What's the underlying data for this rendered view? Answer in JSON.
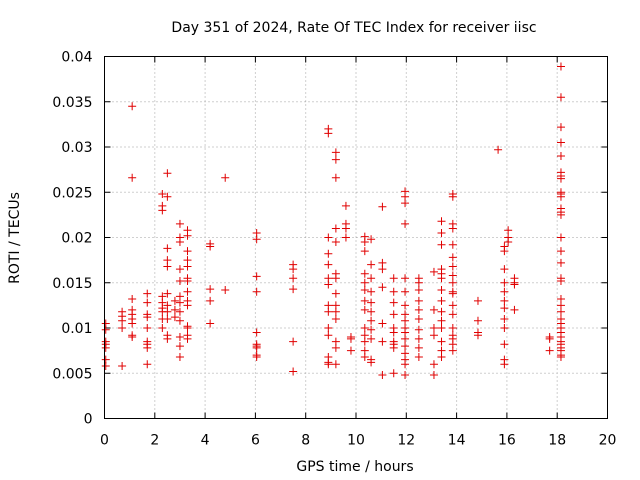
{
  "chart_data": {
    "type": "scatter",
    "title": "Day 351 of 2024, Rate Of TEC Index for receiver iisc",
    "xlabel": "GPS time / hours",
    "ylabel": "ROTI / TECUs",
    "xlim": [
      0,
      20
    ],
    "ylim": [
      0,
      0.04
    ],
    "xticks": [
      0,
      2,
      4,
      6,
      8,
      10,
      12,
      14,
      16,
      18,
      20
    ],
    "xtick_labels": [
      "0",
      "2",
      "4",
      "6",
      "8",
      "10",
      "12",
      "14",
      "16",
      "18",
      "20"
    ],
    "yticks": [
      0,
      0.005,
      0.01,
      0.015,
      0.02,
      0.025,
      0.03,
      0.035,
      0.04
    ],
    "ytick_labels": [
      "0",
      "0.005",
      "0.01",
      "0.015",
      "0.02",
      "0.025",
      "0.03",
      "0.035",
      "0.04"
    ],
    "grid": true,
    "marker": "plus",
    "color": "#e00000",
    "series": [
      {
        "name": "ROTI",
        "points": [
          [
            0.05,
            0.0105
          ],
          [
            0.05,
            0.0098
          ],
          [
            0.05,
            0.0085
          ],
          [
            0.05,
            0.0082
          ],
          [
            0.05,
            0.0078
          ],
          [
            0.05,
            0.0065
          ],
          [
            0.05,
            0.0058
          ],
          [
            0.7,
            0.0118
          ],
          [
            0.7,
            0.0113
          ],
          [
            0.7,
            0.0108
          ],
          [
            0.7,
            0.01
          ],
          [
            0.7,
            0.0058
          ],
          [
            1.1,
            0.0345
          ],
          [
            1.1,
            0.0266
          ],
          [
            1.1,
            0.0132
          ],
          [
            1.1,
            0.012
          ],
          [
            1.1,
            0.0115
          ],
          [
            1.1,
            0.011
          ],
          [
            1.1,
            0.0105
          ],
          [
            1.1,
            0.0092
          ],
          [
            1.1,
            0.009
          ],
          [
            1.7,
            0.0138
          ],
          [
            1.7,
            0.0128
          ],
          [
            1.7,
            0.0115
          ],
          [
            1.7,
            0.0112
          ],
          [
            1.7,
            0.01
          ],
          [
            1.7,
            0.0085
          ],
          [
            1.7,
            0.0082
          ],
          [
            1.7,
            0.0078
          ],
          [
            1.7,
            0.006
          ],
          [
            2.3,
            0.0248
          ],
          [
            2.3,
            0.0235
          ],
          [
            2.3,
            0.023
          ],
          [
            2.3,
            0.0135
          ],
          [
            2.3,
            0.0128
          ],
          [
            2.3,
            0.0122
          ],
          [
            2.3,
            0.0118
          ],
          [
            2.3,
            0.011
          ],
          [
            2.3,
            0.01
          ],
          [
            2.5,
            0.0271
          ],
          [
            2.5,
            0.0245
          ],
          [
            2.5,
            0.0188
          ],
          [
            2.5,
            0.0175
          ],
          [
            2.5,
            0.0168
          ],
          [
            2.5,
            0.0138
          ],
          [
            2.5,
            0.0125
          ],
          [
            2.5,
            0.0118
          ],
          [
            2.5,
            0.011
          ],
          [
            2.5,
            0.0092
          ],
          [
            2.5,
            0.0088
          ],
          [
            2.8,
            0.013
          ],
          [
            2.8,
            0.012
          ],
          [
            2.8,
            0.0112
          ],
          [
            3.0,
            0.0215
          ],
          [
            3.0,
            0.02
          ],
          [
            3.0,
            0.0195
          ],
          [
            3.0,
            0.0165
          ],
          [
            3.0,
            0.0152
          ],
          [
            3.0,
            0.0135
          ],
          [
            3.0,
            0.0128
          ],
          [
            3.0,
            0.0118
          ],
          [
            3.0,
            0.0108
          ],
          [
            3.0,
            0.009
          ],
          [
            3.0,
            0.008
          ],
          [
            3.0,
            0.0068
          ],
          [
            3.3,
            0.0208
          ],
          [
            3.3,
            0.0202
          ],
          [
            3.3,
            0.0185
          ],
          [
            3.3,
            0.0175
          ],
          [
            3.3,
            0.0168
          ],
          [
            3.3,
            0.0155
          ],
          [
            3.3,
            0.0152
          ],
          [
            3.3,
            0.014
          ],
          [
            3.3,
            0.013
          ],
          [
            3.3,
            0.0125
          ],
          [
            3.3,
            0.0102
          ],
          [
            3.3,
            0.01
          ],
          [
            3.3,
            0.0092
          ],
          [
            3.3,
            0.0088
          ],
          [
            4.2,
            0.0193
          ],
          [
            4.2,
            0.019
          ],
          [
            4.2,
            0.0143
          ],
          [
            4.2,
            0.013
          ],
          [
            4.2,
            0.0105
          ],
          [
            4.8,
            0.0266
          ],
          [
            4.8,
            0.0142
          ],
          [
            6.05,
            0.0205
          ],
          [
            6.05,
            0.0198
          ],
          [
            6.05,
            0.0157
          ],
          [
            6.05,
            0.014
          ],
          [
            6.05,
            0.0095
          ],
          [
            6.05,
            0.0082
          ],
          [
            6.05,
            0.008
          ],
          [
            6.05,
            0.0078
          ],
          [
            6.05,
            0.007
          ],
          [
            6.05,
            0.0068
          ],
          [
            7.5,
            0.017
          ],
          [
            7.5,
            0.0165
          ],
          [
            7.5,
            0.0155
          ],
          [
            7.5,
            0.0143
          ],
          [
            7.5,
            0.0085
          ],
          [
            7.5,
            0.0052
          ],
          [
            8.9,
            0.032
          ],
          [
            8.9,
            0.0315
          ],
          [
            8.9,
            0.02
          ],
          [
            8.9,
            0.0182
          ],
          [
            8.9,
            0.017
          ],
          [
            8.9,
            0.0155
          ],
          [
            8.9,
            0.0148
          ],
          [
            8.9,
            0.0125
          ],
          [
            8.9,
            0.0118
          ],
          [
            8.9,
            0.01
          ],
          [
            8.9,
            0.0092
          ],
          [
            8.9,
            0.0068
          ],
          [
            8.9,
            0.0062
          ],
          [
            8.9,
            0.006
          ],
          [
            9.2,
            0.0294
          ],
          [
            9.2,
            0.0286
          ],
          [
            9.2,
            0.0266
          ],
          [
            9.2,
            0.021
          ],
          [
            9.2,
            0.0195
          ],
          [
            9.2,
            0.016
          ],
          [
            9.2,
            0.0155
          ],
          [
            9.2,
            0.0138
          ],
          [
            9.2,
            0.0125
          ],
          [
            9.2,
            0.0118
          ],
          [
            9.2,
            0.011
          ],
          [
            9.2,
            0.0085
          ],
          [
            9.2,
            0.0078
          ],
          [
            9.2,
            0.006
          ],
          [
            9.6,
            0.0235
          ],
          [
            9.6,
            0.0215
          ],
          [
            9.6,
            0.021
          ],
          [
            9.6,
            0.02
          ],
          [
            9.8,
            0.009
          ],
          [
            9.8,
            0.0088
          ],
          [
            9.8,
            0.0075
          ],
          [
            10.35,
            0.0201
          ],
          [
            10.35,
            0.0195
          ],
          [
            10.35,
            0.0185
          ],
          [
            10.35,
            0.016
          ],
          [
            10.35,
            0.015
          ],
          [
            10.35,
            0.0142
          ],
          [
            10.35,
            0.013
          ],
          [
            10.35,
            0.012
          ],
          [
            10.35,
            0.01
          ],
          [
            10.35,
            0.0092
          ],
          [
            10.35,
            0.0085
          ],
          [
            10.35,
            0.0075
          ],
          [
            10.35,
            0.0068
          ],
          [
            10.6,
            0.0198
          ],
          [
            10.6,
            0.017
          ],
          [
            10.6,
            0.0155
          ],
          [
            10.6,
            0.014
          ],
          [
            10.6,
            0.0128
          ],
          [
            10.6,
            0.0118
          ],
          [
            10.6,
            0.0108
          ],
          [
            10.6,
            0.0098
          ],
          [
            10.6,
            0.0088
          ],
          [
            10.6,
            0.0065
          ],
          [
            10.6,
            0.0062
          ],
          [
            11.05,
            0.0234
          ],
          [
            11.05,
            0.0172
          ],
          [
            11.05,
            0.0165
          ],
          [
            11.05,
            0.0145
          ],
          [
            11.05,
            0.0105
          ],
          [
            11.05,
            0.0085
          ],
          [
            11.05,
            0.0048
          ],
          [
            11.5,
            0.0155
          ],
          [
            11.5,
            0.014
          ],
          [
            11.5,
            0.0128
          ],
          [
            11.5,
            0.0115
          ],
          [
            11.5,
            0.01
          ],
          [
            11.5,
            0.0095
          ],
          [
            11.5,
            0.0085
          ],
          [
            11.5,
            0.0082
          ],
          [
            11.5,
            0.0078
          ],
          [
            11.5,
            0.005
          ],
          [
            11.95,
            0.0251
          ],
          [
            11.95,
            0.0245
          ],
          [
            11.95,
            0.0238
          ],
          [
            11.95,
            0.0215
          ],
          [
            11.95,
            0.0155
          ],
          [
            11.95,
            0.014
          ],
          [
            11.95,
            0.0125
          ],
          [
            11.95,
            0.0115
          ],
          [
            11.95,
            0.0108
          ],
          [
            11.95,
            0.01
          ],
          [
            11.95,
            0.0095
          ],
          [
            11.95,
            0.0088
          ],
          [
            11.95,
            0.008
          ],
          [
            11.95,
            0.0072
          ],
          [
            11.95,
            0.0065
          ],
          [
            11.95,
            0.006
          ],
          [
            11.95,
            0.0048
          ],
          [
            12.5,
            0.0155
          ],
          [
            12.5,
            0.015
          ],
          [
            12.5,
            0.0142
          ],
          [
            12.5,
            0.013
          ],
          [
            12.5,
            0.012
          ],
          [
            12.5,
            0.011
          ],
          [
            12.5,
            0.0098
          ],
          [
            12.5,
            0.0088
          ],
          [
            12.5,
            0.0078
          ],
          [
            12.5,
            0.0068
          ],
          [
            13.1,
            0.0162
          ],
          [
            13.1,
            0.012
          ],
          [
            13.1,
            0.01
          ],
          [
            13.1,
            0.0092
          ],
          [
            13.1,
            0.006
          ],
          [
            13.1,
            0.0048
          ],
          [
            13.4,
            0.0218
          ],
          [
            13.4,
            0.0205
          ],
          [
            13.4,
            0.0192
          ],
          [
            13.4,
            0.0165
          ],
          [
            13.4,
            0.016
          ],
          [
            13.4,
            0.0155
          ],
          [
            13.4,
            0.0142
          ],
          [
            13.4,
            0.013
          ],
          [
            13.4,
            0.0118
          ],
          [
            13.4,
            0.0108
          ],
          [
            13.4,
            0.01
          ],
          [
            13.4,
            0.0085
          ],
          [
            13.4,
            0.0075
          ],
          [
            13.4,
            0.0068
          ],
          [
            13.85,
            0.0248
          ],
          [
            13.85,
            0.0245
          ],
          [
            13.85,
            0.0215
          ],
          [
            13.85,
            0.021
          ],
          [
            13.85,
            0.0192
          ],
          [
            13.85,
            0.0178
          ],
          [
            13.85,
            0.0168
          ],
          [
            13.85,
            0.0158
          ],
          [
            13.85,
            0.015
          ],
          [
            13.85,
            0.014
          ],
          [
            13.85,
            0.0138
          ],
          [
            13.85,
            0.0125
          ],
          [
            13.85,
            0.0115
          ],
          [
            13.85,
            0.01
          ],
          [
            13.85,
            0.0092
          ],
          [
            13.85,
            0.0088
          ],
          [
            13.85,
            0.0082
          ],
          [
            13.85,
            0.0075
          ],
          [
            14.85,
            0.013
          ],
          [
            14.85,
            0.0108
          ],
          [
            14.85,
            0.0095
          ],
          [
            14.85,
            0.0092
          ],
          [
            15.65,
            0.0297
          ],
          [
            15.9,
            0.019
          ],
          [
            15.9,
            0.0185
          ],
          [
            15.9,
            0.0165
          ],
          [
            15.9,
            0.015
          ],
          [
            15.9,
            0.014
          ],
          [
            15.9,
            0.013
          ],
          [
            15.9,
            0.0122
          ],
          [
            15.9,
            0.011
          ],
          [
            15.9,
            0.01
          ],
          [
            15.9,
            0.0082
          ],
          [
            15.9,
            0.0065
          ],
          [
            15.9,
            0.006
          ],
          [
            16.05,
            0.0208
          ],
          [
            16.05,
            0.02
          ],
          [
            16.05,
            0.0195
          ],
          [
            16.3,
            0.0155
          ],
          [
            16.3,
            0.015
          ],
          [
            16.3,
            0.0148
          ],
          [
            16.3,
            0.012
          ],
          [
            17.7,
            0.009
          ],
          [
            17.7,
            0.0088
          ],
          [
            17.7,
            0.0075
          ],
          [
            18.15,
            0.0389
          ],
          [
            18.15,
            0.0355
          ],
          [
            18.15,
            0.0322
          ],
          [
            18.15,
            0.0305
          ],
          [
            18.15,
            0.029
          ],
          [
            18.15,
            0.0272
          ],
          [
            18.15,
            0.0268
          ],
          [
            18.15,
            0.0265
          ],
          [
            18.15,
            0.025
          ],
          [
            18.15,
            0.0248
          ],
          [
            18.15,
            0.0245
          ],
          [
            18.15,
            0.0232
          ],
          [
            18.15,
            0.0228
          ],
          [
            18.15,
            0.0225
          ],
          [
            18.15,
            0.02
          ],
          [
            18.15,
            0.0185
          ],
          [
            18.15,
            0.0172
          ],
          [
            18.15,
            0.0155
          ],
          [
            18.15,
            0.0152
          ],
          [
            18.15,
            0.0132
          ],
          [
            18.15,
            0.0125
          ],
          [
            18.15,
            0.0118
          ],
          [
            18.15,
            0.011
          ],
          [
            18.15,
            0.0105
          ],
          [
            18.15,
            0.01
          ],
          [
            18.15,
            0.0095
          ],
          [
            18.15,
            0.009
          ],
          [
            18.15,
            0.0085
          ],
          [
            18.15,
            0.0082
          ],
          [
            18.15,
            0.0078
          ],
          [
            18.15,
            0.0075
          ],
          [
            18.15,
            0.007
          ],
          [
            18.15,
            0.0068
          ]
        ]
      }
    ]
  }
}
